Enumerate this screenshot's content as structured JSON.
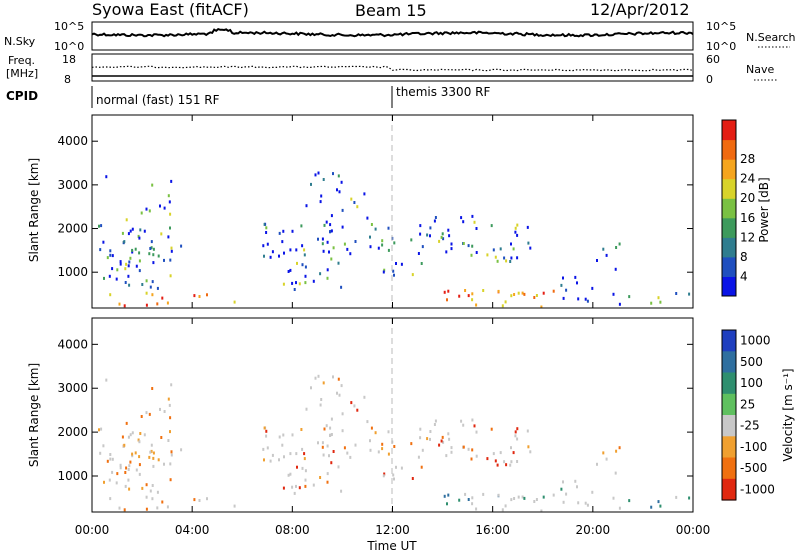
{
  "header": {
    "station": "Syowa East (fitACF)",
    "beam": "Beam 15",
    "date": "12/Apr/2012"
  },
  "top_panels": {
    "nsky_label": "N.Sky",
    "nsky_ticks": [
      "10^5",
      "10^0"
    ],
    "nsearch_label": "N.Search",
    "nsearch_ticks": [
      "10^5",
      "10^0"
    ],
    "freq_label_line1": "Freq.",
    "freq_label_line2": "[MHz]",
    "freq_ticks": [
      "18",
      "8"
    ],
    "nave_label": "Nave",
    "nave_ticks": [
      "60",
      "0"
    ],
    "cpid_label": "CPID",
    "cpid_segments": [
      {
        "label": "normal (fast) 151 RF",
        "start_hour": 0
      },
      {
        "label": "themis 3300 RF",
        "start_hour": 12
      }
    ]
  },
  "chart_data": [
    {
      "type": "heatmap",
      "panel": "power",
      "ylabel": "Slant Range [km]",
      "xlabel": "Time UT",
      "y_ticks": [
        "1000",
        "2000",
        "3000",
        "4000"
      ],
      "ylim": [
        180,
        4600
      ],
      "xlim_hours": [
        0,
        24
      ],
      "x_ticks": [
        "00:00",
        "04:00",
        "08:00",
        "12:00",
        "16:00",
        "20:00",
        "00:00"
      ],
      "colorbar_label": "Power [dB]",
      "colorbar_ticks": [
        "4",
        "8",
        "12",
        "16",
        "20",
        "24",
        "28"
      ],
      "colorbar_colors": [
        "#0a14e6",
        "#1f4fbf",
        "#2f7d8f",
        "#3d9a5c",
        "#7ac143",
        "#d8d32a",
        "#f5a51e",
        "#f06a10",
        "#e41e14"
      ]
    },
    {
      "type": "heatmap",
      "panel": "velocity",
      "ylabel": "Slant Range [km]",
      "xlabel": "Time UT",
      "y_ticks": [
        "1000",
        "2000",
        "3000",
        "4000"
      ],
      "ylim": [
        180,
        4600
      ],
      "xlim_hours": [
        0,
        24
      ],
      "x_ticks": [
        "00:00",
        "04:00",
        "08:00",
        "12:00",
        "16:00",
        "20:00",
        "00:00"
      ],
      "colorbar_label": "Velocity [m s⁻¹]",
      "colorbar_ticks": [
        "1000",
        "500",
        "100",
        "25",
        "-25",
        "-100",
        "-500",
        "-1000"
      ],
      "colorbar_colors": [
        "#1f3fbf",
        "#2f6f9f",
        "#2f8f6f",
        "#5fc05f",
        "#c8c8c8",
        "#f0a030",
        "#f07010",
        "#e02810"
      ]
    }
  ],
  "time_axis_label": "Time UT"
}
